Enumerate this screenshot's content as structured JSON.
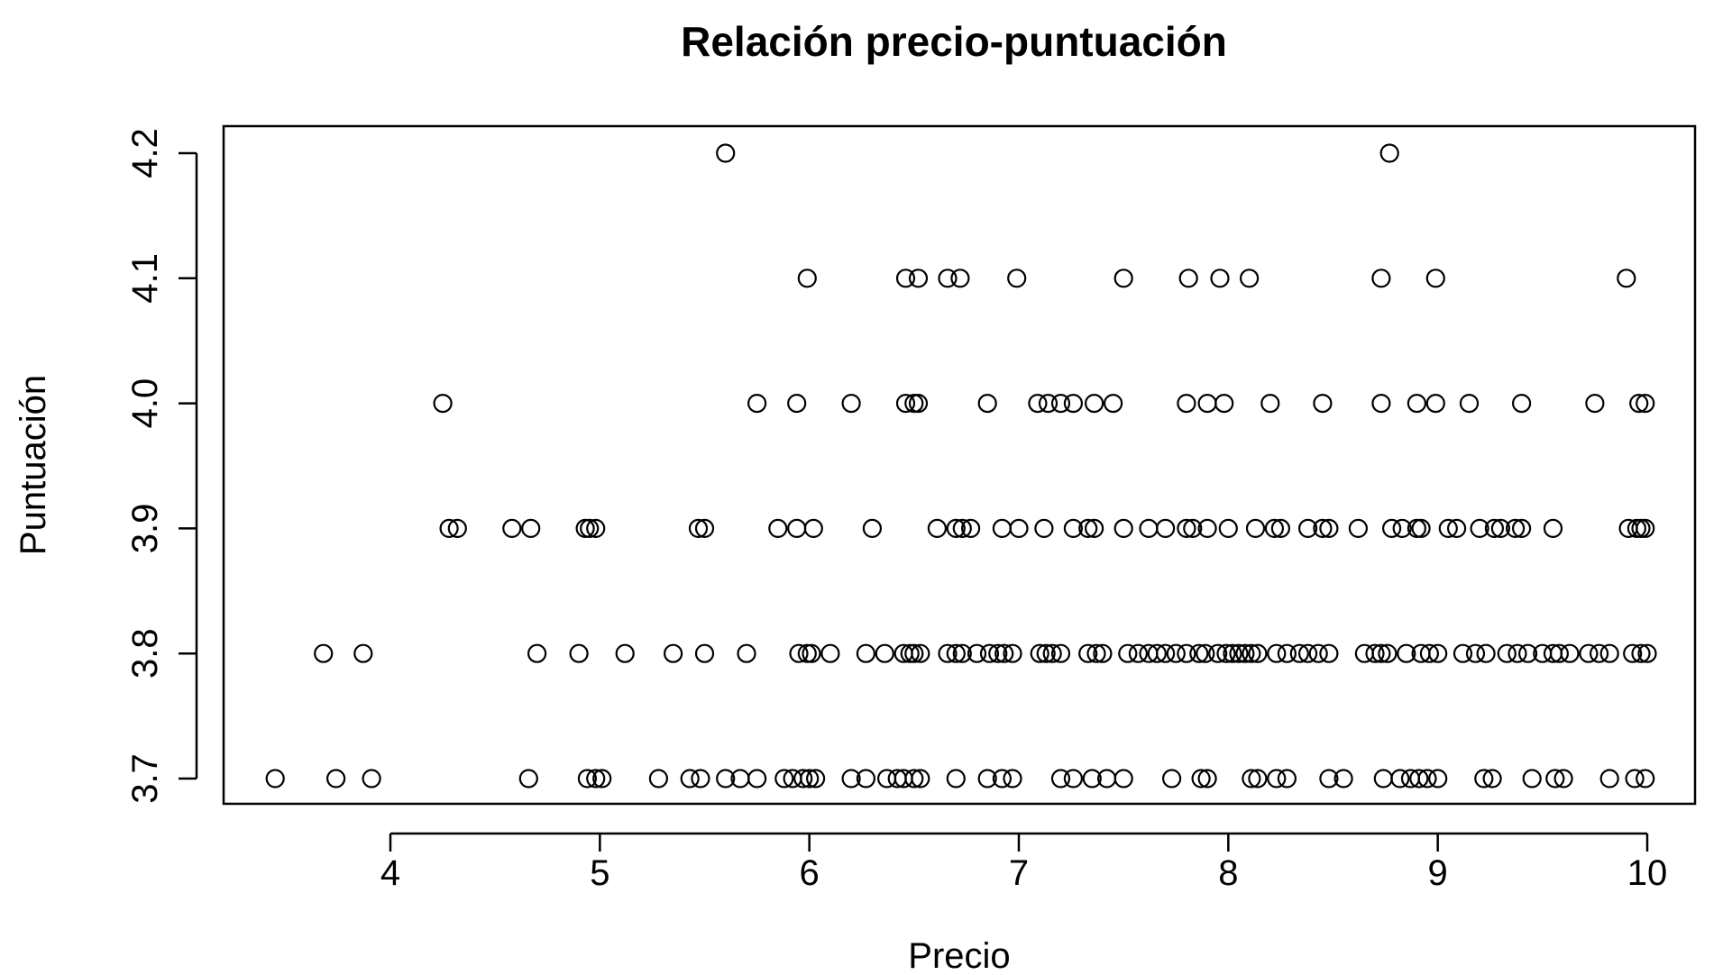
{
  "chart_data": {
    "type": "scatter",
    "title": "Relación precio-puntuación",
    "xlabel": "Precio",
    "ylabel": "Puntuación",
    "xlim": [
      3.45,
      10.0
    ],
    "ylim": [
      3.7,
      4.2
    ],
    "x_ticks": [
      "4",
      "5",
      "6",
      "7",
      "8",
      "9",
      "10"
    ],
    "y_ticks": [
      "3.7",
      "3.8",
      "3.9",
      "4.0",
      "4.1",
      "4.2"
    ],
    "grid": false,
    "legend": "none",
    "marker": "open-circle",
    "color": "#000000",
    "series": [
      {
        "points": [
          [
            5.6,
            4.2
          ],
          [
            8.77,
            4.2
          ],
          [
            5.99,
            4.1
          ],
          [
            6.46,
            4.1
          ],
          [
            6.52,
            4.1
          ],
          [
            6.66,
            4.1
          ],
          [
            6.72,
            4.1
          ],
          [
            6.99,
            4.1
          ],
          [
            7.5,
            4.1
          ],
          [
            7.81,
            4.1
          ],
          [
            7.96,
            4.1
          ],
          [
            8.1,
            4.1
          ],
          [
            8.73,
            4.1
          ],
          [
            8.99,
            4.1
          ],
          [
            9.9,
            4.1
          ],
          [
            4.25,
            4.0
          ],
          [
            5.75,
            4.0
          ],
          [
            5.94,
            4.0
          ],
          [
            6.2,
            4.0
          ],
          [
            6.46,
            4.0
          ],
          [
            6.5,
            4.0
          ],
          [
            6.52,
            4.0
          ],
          [
            6.85,
            4.0
          ],
          [
            7.09,
            4.0
          ],
          [
            7.14,
            4.0
          ],
          [
            7.2,
            4.0
          ],
          [
            7.26,
            4.0
          ],
          [
            7.36,
            4.0
          ],
          [
            7.45,
            4.0
          ],
          [
            7.8,
            4.0
          ],
          [
            7.9,
            4.0
          ],
          [
            7.98,
            4.0
          ],
          [
            8.2,
            4.0
          ],
          [
            8.45,
            4.0
          ],
          [
            8.73,
            4.0
          ],
          [
            8.9,
            4.0
          ],
          [
            8.99,
            4.0
          ],
          [
            9.15,
            4.0
          ],
          [
            9.4,
            4.0
          ],
          [
            9.75,
            4.0
          ],
          [
            9.96,
            4.0
          ],
          [
            9.99,
            4.0
          ],
          [
            4.28,
            3.9
          ],
          [
            4.32,
            3.9
          ],
          [
            4.58,
            3.9
          ],
          [
            4.67,
            3.9
          ],
          [
            4.93,
            3.9
          ],
          [
            4.95,
            3.9
          ],
          [
            4.98,
            3.9
          ],
          [
            5.47,
            3.9
          ],
          [
            5.5,
            3.9
          ],
          [
            5.85,
            3.9
          ],
          [
            5.94,
            3.9
          ],
          [
            6.02,
            3.9
          ],
          [
            6.3,
            3.9
          ],
          [
            6.61,
            3.9
          ],
          [
            6.7,
            3.9
          ],
          [
            6.73,
            3.9
          ],
          [
            6.77,
            3.9
          ],
          [
            6.92,
            3.9
          ],
          [
            7.0,
            3.9
          ],
          [
            7.12,
            3.9
          ],
          [
            7.26,
            3.9
          ],
          [
            7.33,
            3.9
          ],
          [
            7.36,
            3.9
          ],
          [
            7.5,
            3.9
          ],
          [
            7.62,
            3.9
          ],
          [
            7.7,
            3.9
          ],
          [
            7.8,
            3.9
          ],
          [
            7.83,
            3.9
          ],
          [
            7.9,
            3.9
          ],
          [
            8.0,
            3.9
          ],
          [
            8.13,
            3.9
          ],
          [
            8.22,
            3.9
          ],
          [
            8.25,
            3.9
          ],
          [
            8.38,
            3.9
          ],
          [
            8.45,
            3.9
          ],
          [
            8.48,
            3.9
          ],
          [
            8.62,
            3.9
          ],
          [
            8.78,
            3.9
          ],
          [
            8.83,
            3.9
          ],
          [
            8.9,
            3.9
          ],
          [
            8.92,
            3.9
          ],
          [
            9.05,
            3.9
          ],
          [
            9.09,
            3.9
          ],
          [
            9.2,
            3.9
          ],
          [
            9.27,
            3.9
          ],
          [
            9.3,
            3.9
          ],
          [
            9.37,
            3.9
          ],
          [
            9.4,
            3.9
          ],
          [
            9.55,
            3.9
          ],
          [
            9.91,
            3.9
          ],
          [
            9.95,
            3.9
          ],
          [
            9.97,
            3.9
          ],
          [
            9.99,
            3.9
          ],
          [
            3.68,
            3.8
          ],
          [
            3.87,
            3.8
          ],
          [
            4.7,
            3.8
          ],
          [
            4.9,
            3.8
          ],
          [
            5.12,
            3.8
          ],
          [
            5.35,
            3.8
          ],
          [
            5.5,
            3.8
          ],
          [
            5.7,
            3.8
          ],
          [
            5.95,
            3.8
          ],
          [
            5.99,
            3.8
          ],
          [
            6.01,
            3.8
          ],
          [
            6.1,
            3.8
          ],
          [
            6.27,
            3.8
          ],
          [
            6.36,
            3.8
          ],
          [
            6.45,
            3.8
          ],
          [
            6.48,
            3.8
          ],
          [
            6.5,
            3.8
          ],
          [
            6.53,
            3.8
          ],
          [
            6.66,
            3.8
          ],
          [
            6.7,
            3.8
          ],
          [
            6.73,
            3.8
          ],
          [
            6.8,
            3.8
          ],
          [
            6.86,
            3.8
          ],
          [
            6.9,
            3.8
          ],
          [
            6.93,
            3.8
          ],
          [
            6.97,
            3.8
          ],
          [
            7.1,
            3.8
          ],
          [
            7.13,
            3.8
          ],
          [
            7.16,
            3.8
          ],
          [
            7.2,
            3.8
          ],
          [
            7.33,
            3.8
          ],
          [
            7.37,
            3.8
          ],
          [
            7.4,
            3.8
          ],
          [
            7.52,
            3.8
          ],
          [
            7.57,
            3.8
          ],
          [
            7.62,
            3.8
          ],
          [
            7.66,
            3.8
          ],
          [
            7.7,
            3.8
          ],
          [
            7.75,
            3.8
          ],
          [
            7.8,
            3.8
          ],
          [
            7.86,
            3.8
          ],
          [
            7.89,
            3.8
          ],
          [
            7.95,
            3.8
          ],
          [
            7.99,
            3.8
          ],
          [
            8.02,
            3.8
          ],
          [
            8.05,
            3.8
          ],
          [
            8.08,
            3.8
          ],
          [
            8.11,
            3.8
          ],
          [
            8.14,
            3.8
          ],
          [
            8.23,
            3.8
          ],
          [
            8.28,
            3.8
          ],
          [
            8.34,
            3.8
          ],
          [
            8.38,
            3.8
          ],
          [
            8.43,
            3.8
          ],
          [
            8.48,
            3.8
          ],
          [
            8.65,
            3.8
          ],
          [
            8.7,
            3.8
          ],
          [
            8.73,
            3.8
          ],
          [
            8.76,
            3.8
          ],
          [
            8.85,
            3.8
          ],
          [
            8.92,
            3.8
          ],
          [
            8.96,
            3.8
          ],
          [
            9.0,
            3.8
          ],
          [
            9.12,
            3.8
          ],
          [
            9.18,
            3.8
          ],
          [
            9.23,
            3.8
          ],
          [
            9.33,
            3.8
          ],
          [
            9.38,
            3.8
          ],
          [
            9.43,
            3.8
          ],
          [
            9.5,
            3.8
          ],
          [
            9.55,
            3.8
          ],
          [
            9.58,
            3.8
          ],
          [
            9.63,
            3.8
          ],
          [
            9.72,
            3.8
          ],
          [
            9.77,
            3.8
          ],
          [
            9.82,
            3.8
          ],
          [
            9.93,
            3.8
          ],
          [
            9.97,
            3.8
          ],
          [
            10.0,
            3.8
          ],
          [
            3.45,
            3.7
          ],
          [
            3.74,
            3.7
          ],
          [
            3.91,
            3.7
          ],
          [
            4.66,
            3.7
          ],
          [
            4.94,
            3.7
          ],
          [
            4.98,
            3.7
          ],
          [
            5.01,
            3.7
          ],
          [
            5.28,
            3.7
          ],
          [
            5.43,
            3.7
          ],
          [
            5.48,
            3.7
          ],
          [
            5.6,
            3.7
          ],
          [
            5.67,
            3.7
          ],
          [
            5.75,
            3.7
          ],
          [
            5.88,
            3.7
          ],
          [
            5.92,
            3.7
          ],
          [
            5.97,
            3.7
          ],
          [
            6.0,
            3.7
          ],
          [
            6.03,
            3.7
          ],
          [
            6.2,
            3.7
          ],
          [
            6.27,
            3.7
          ],
          [
            6.37,
            3.7
          ],
          [
            6.42,
            3.7
          ],
          [
            6.45,
            3.7
          ],
          [
            6.5,
            3.7
          ],
          [
            6.53,
            3.7
          ],
          [
            6.7,
            3.7
          ],
          [
            6.85,
            3.7
          ],
          [
            6.92,
            3.7
          ],
          [
            6.97,
            3.7
          ],
          [
            7.2,
            3.7
          ],
          [
            7.26,
            3.7
          ],
          [
            7.35,
            3.7
          ],
          [
            7.42,
            3.7
          ],
          [
            7.5,
            3.7
          ],
          [
            7.73,
            3.7
          ],
          [
            7.87,
            3.7
          ],
          [
            7.9,
            3.7
          ],
          [
            8.11,
            3.7
          ],
          [
            8.14,
            3.7
          ],
          [
            8.23,
            3.7
          ],
          [
            8.28,
            3.7
          ],
          [
            8.48,
            3.7
          ],
          [
            8.55,
            3.7
          ],
          [
            8.74,
            3.7
          ],
          [
            8.82,
            3.7
          ],
          [
            8.87,
            3.7
          ],
          [
            8.91,
            3.7
          ],
          [
            8.95,
            3.7
          ],
          [
            9.0,
            3.7
          ],
          [
            9.22,
            3.7
          ],
          [
            9.26,
            3.7
          ],
          [
            9.45,
            3.7
          ],
          [
            9.56,
            3.7
          ],
          [
            9.6,
            3.7
          ],
          [
            9.82,
            3.7
          ],
          [
            9.94,
            3.7
          ],
          [
            9.99,
            3.7
          ]
        ]
      }
    ]
  }
}
